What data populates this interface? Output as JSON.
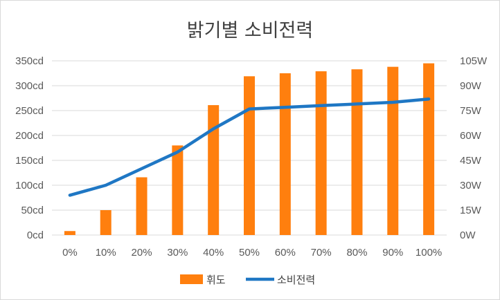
{
  "chart_data": {
    "type": "bar",
    "title": "밝기별 소비전력",
    "categories": [
      "0%",
      "10%",
      "20%",
      "30%",
      "40%",
      "50%",
      "60%",
      "70%",
      "80%",
      "90%",
      "100%"
    ],
    "series": [
      {
        "name": "휘도",
        "type": "bar",
        "axis": "left",
        "color": "#ff7f0e",
        "values": [
          8,
          50,
          116,
          180,
          261,
          319,
          325,
          329,
          333,
          338,
          345
        ]
      },
      {
        "name": "소비전력",
        "type": "line",
        "axis": "right",
        "color": "#1f77c4",
        "values": [
          24,
          30,
          40,
          50,
          64,
          76,
          77,
          78,
          79,
          80,
          82
        ]
      }
    ],
    "y_left": {
      "range": [
        0,
        350
      ],
      "ticks": [
        "0cd",
        "50cd",
        "100cd",
        "150cd",
        "200cd",
        "250cd",
        "300cd",
        "350cd"
      ]
    },
    "y_right": {
      "range": [
        0,
        105
      ],
      "ticks": [
        "0W",
        "15W",
        "30W",
        "45W",
        "60W",
        "75W",
        "90W",
        "105W"
      ]
    },
    "grid": true,
    "legend_position": "bottom"
  }
}
